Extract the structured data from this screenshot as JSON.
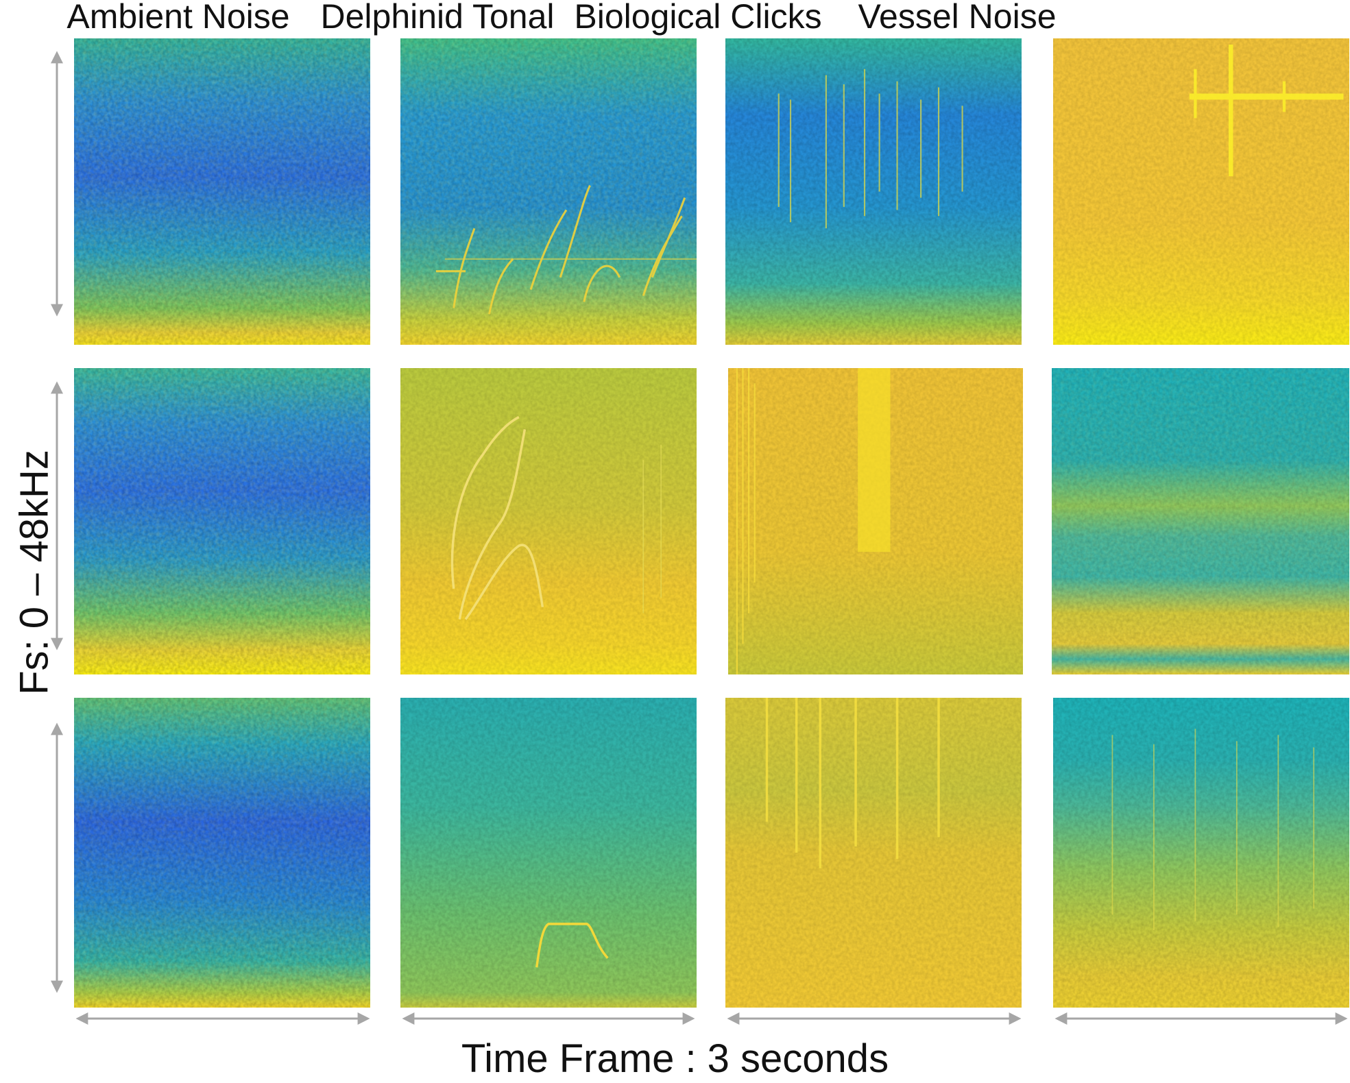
{
  "columns": [
    "Ambient Noise",
    "Delphinid Tonal",
    "Biological Clicks",
    "Vessel Noise"
  ],
  "ylabel": "Fs: 0 – 48kHz",
  "xlabel": "Time Frame : 3 seconds",
  "colors": {
    "colormap": [
      "#2a5de0",
      "#2189e0",
      "#20b0b8",
      "#5cc47a",
      "#b8cf3c",
      "#f2c733",
      "#f5e31a"
    ],
    "arrow": "#a6a6a6"
  },
  "rows": 3,
  "panel_count": 12
}
